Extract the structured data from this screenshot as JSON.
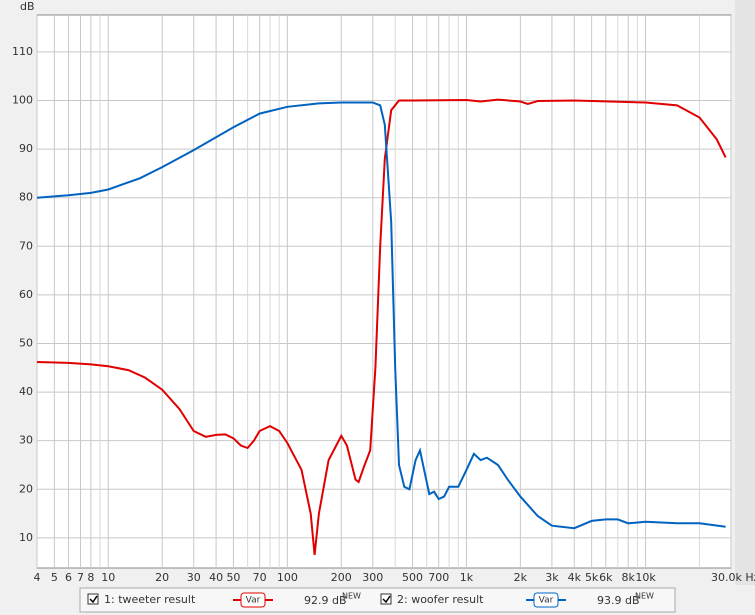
{
  "chart_data": {
    "type": "line",
    "y_unit": "dB",
    "xscale": "log",
    "grid": true,
    "xlim": [
      4,
      30000
    ],
    "ylim": [
      3.8,
      117.6
    ],
    "yticks": [
      10,
      20,
      30,
      40,
      50,
      60,
      70,
      80,
      90,
      100,
      110
    ],
    "xticks": [
      4,
      5,
      6,
      7,
      8,
      10,
      20,
      30,
      40,
      50,
      70,
      100,
      200,
      300,
      500,
      700,
      {
        "value": 1000,
        "label": "1k"
      },
      {
        "value": 2000,
        "label": "2k"
      },
      {
        "value": 3000,
        "label": "3k"
      },
      {
        "value": 4000,
        "label": "4k"
      },
      {
        "value": 5000,
        "label": "5k"
      },
      {
        "value": 6000,
        "label": "6k"
      },
      {
        "value": 8000,
        "label": "8k"
      },
      {
        "value": 10000,
        "label": "10k"
      },
      {
        "value": 30000,
        "label": "30.0k Hz"
      }
    ],
    "xminorticks": [
      9,
      60,
      80,
      90,
      400,
      600,
      800,
      900,
      7000,
      9000,
      20000
    ],
    "series": [
      {
        "name": "1: tweeter result",
        "color": "#e00000",
        "var_label": "Var",
        "level": "92.9 dB",
        "badge": "NEW",
        "x": [
          4,
          6,
          8,
          10,
          13,
          16,
          20,
          25,
          30,
          35,
          40,
          45,
          50,
          55,
          60,
          65,
          70,
          80,
          90,
          100,
          120,
          135,
          142,
          150,
          170,
          200,
          215,
          240,
          250,
          270,
          290,
          310,
          330,
          350,
          380,
          420,
          500,
          1000,
          1200,
          1500,
          2000,
          2200,
          2500,
          4000,
          10000,
          15000,
          20000,
          25000,
          28000
        ],
        "values": [
          46.2,
          46,
          45.7,
          45.3,
          44.5,
          43,
          40.5,
          36.5,
          32,
          30.8,
          31.2,
          31.3,
          30.5,
          29,
          28.5,
          30,
          32,
          33,
          32,
          29.5,
          24,
          15,
          6.5,
          15,
          26,
          31,
          29,
          22,
          21.5,
          25,
          28,
          45,
          70,
          88,
          98,
          100,
          100,
          100.1,
          99.8,
          100.2,
          99.8,
          99.3,
          99.9,
          100,
          99.6,
          99,
          96.5,
          92,
          88.3
        ]
      },
      {
        "name": "2: woofer result",
        "color": "#0063c0",
        "var_label": "Var",
        "level": "93.9 dB",
        "badge": "NEW",
        "x": [
          4,
          6,
          8,
          10,
          15,
          20,
          30,
          50,
          70,
          100,
          150,
          200,
          300,
          330,
          350,
          380,
          400,
          420,
          450,
          480,
          520,
          550,
          580,
          620,
          660,
          700,
          750,
          800,
          900,
          1000,
          1100,
          1200,
          1300,
          1500,
          1700,
          2000,
          2500,
          3000,
          4000,
          5000,
          6000,
          7000,
          8000,
          10000,
          15000,
          20000,
          28000
        ],
        "values": [
          80,
          80.5,
          81,
          81.7,
          84,
          86.3,
          89.8,
          94.5,
          97.3,
          98.7,
          99.4,
          99.6,
          99.6,
          99,
          95,
          75,
          45,
          25,
          20.5,
          20,
          26,
          28,
          24,
          19,
          19.5,
          18,
          18.5,
          20.5,
          20.5,
          24,
          27.3,
          26,
          26.5,
          25,
          22,
          18.5,
          14.5,
          12.5,
          12,
          13.5,
          13.8,
          13.8,
          13,
          13.3,
          13,
          13,
          12.3
        ]
      }
    ]
  }
}
